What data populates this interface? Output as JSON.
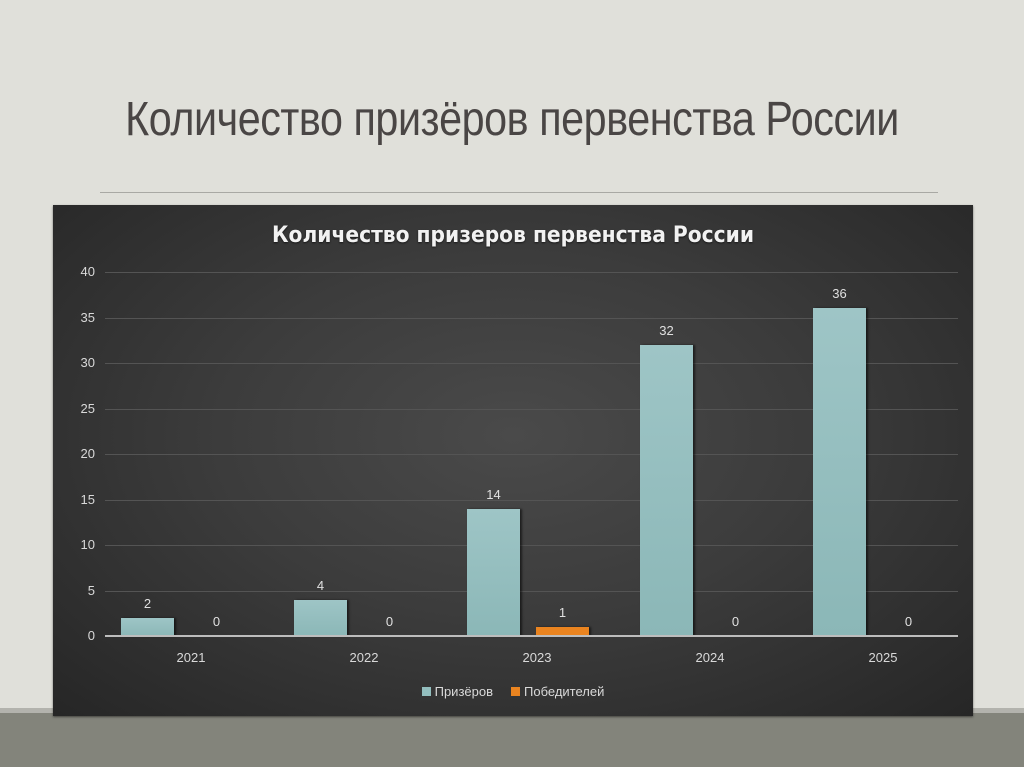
{
  "slide": {
    "title": "Количество призёров первенства России"
  },
  "colors": {
    "slide_bg": "#e0e0da",
    "chart_bg": "#3c3c3c",
    "series_0": "#93bebe",
    "series_1": "#ea8420",
    "bottom_band": "#83847b"
  },
  "chart_data": {
    "type": "bar",
    "title": "Количество призеров первенства России",
    "categories": [
      "2021",
      "2022",
      "2023",
      "2024",
      "2025"
    ],
    "series": [
      {
        "name": "Призёров",
        "values": [
          2,
          4,
          14,
          32,
          36
        ],
        "color": "#93bebe"
      },
      {
        "name": "Победителей",
        "values": [
          0,
          0,
          1,
          0,
          0
        ],
        "color": "#ea8420"
      }
    ],
    "xlabel": "",
    "ylabel": "",
    "ylim": [
      0,
      40
    ],
    "yticks": [
      "0",
      "5",
      "10",
      "15",
      "20",
      "25",
      "30",
      "35",
      "40"
    ],
    "data_labels": [
      [
        "2",
        "4",
        "14",
        "32",
        "36"
      ],
      [
        "0",
        "0",
        "1",
        "0",
        "0"
      ]
    ],
    "grid": true,
    "legend_position": "bottom"
  }
}
